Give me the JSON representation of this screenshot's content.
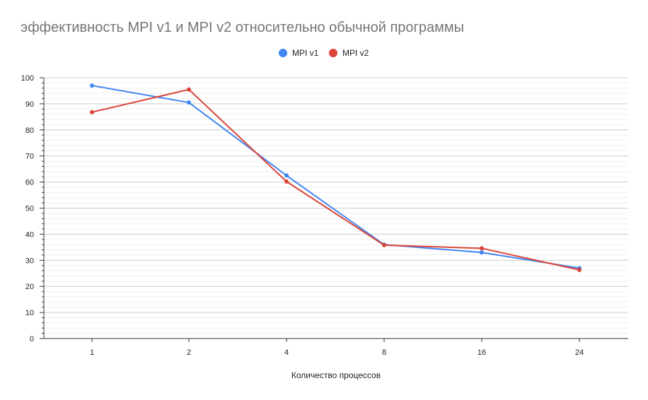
{
  "chart_data": {
    "type": "line",
    "title": "эффективность MPI v1 и  MPI v2 относительно обычной программы",
    "xlabel": "Количество процессов",
    "ylabel": "",
    "categories": [
      "1",
      "2",
      "4",
      "8",
      "16",
      "24"
    ],
    "ylim": [
      0,
      100
    ],
    "yticks": [
      "0",
      "10",
      "20",
      "30",
      "40",
      "50",
      "60",
      "70",
      "80",
      "90",
      "100"
    ],
    "grid": true,
    "legend_position": "top",
    "series": [
      {
        "name": "MPI v1",
        "color": "#4285f4",
        "values": [
          97,
          90.5,
          62.5,
          36,
          33,
          27
        ]
      },
      {
        "name": "MPI v2",
        "color": "#db4437",
        "values": [
          86.8,
          95.5,
          60.2,
          35.8,
          34.6,
          26.3
        ]
      }
    ]
  }
}
